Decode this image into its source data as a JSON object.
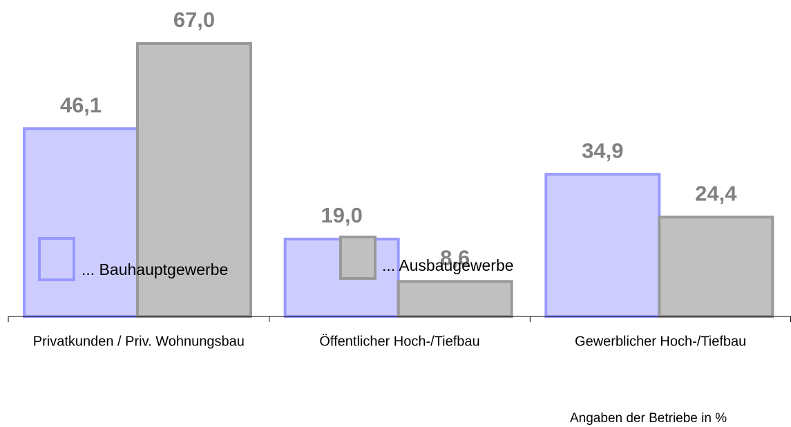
{
  "chart_data": {
    "type": "bar",
    "categories": [
      "Privatkunden / Priv. Wohnungsbau",
      "Öffentlicher Hoch-/Tiefbau",
      "Gewerblicher Hoch-/Tiefbau"
    ],
    "series": [
      {
        "name": "... Bauhauptgewerbe",
        "color": "#ccccff",
        "stroke": "#9999ff",
        "values": [
          46.1,
          19.0,
          34.9
        ],
        "value_labels": [
          "46,1",
          "19,0",
          "34,9"
        ]
      },
      {
        "name": "... Ausbaugewerbe",
        "color": "#c0c0c0",
        "stroke": "#999999",
        "values": [
          67.0,
          8.6,
          24.4
        ],
        "value_labels": [
          "67,0",
          "8,6",
          "24,4"
        ]
      }
    ],
    "ylim": [
      0,
      67
    ],
    "note": "Angaben der Betriebe in %"
  }
}
